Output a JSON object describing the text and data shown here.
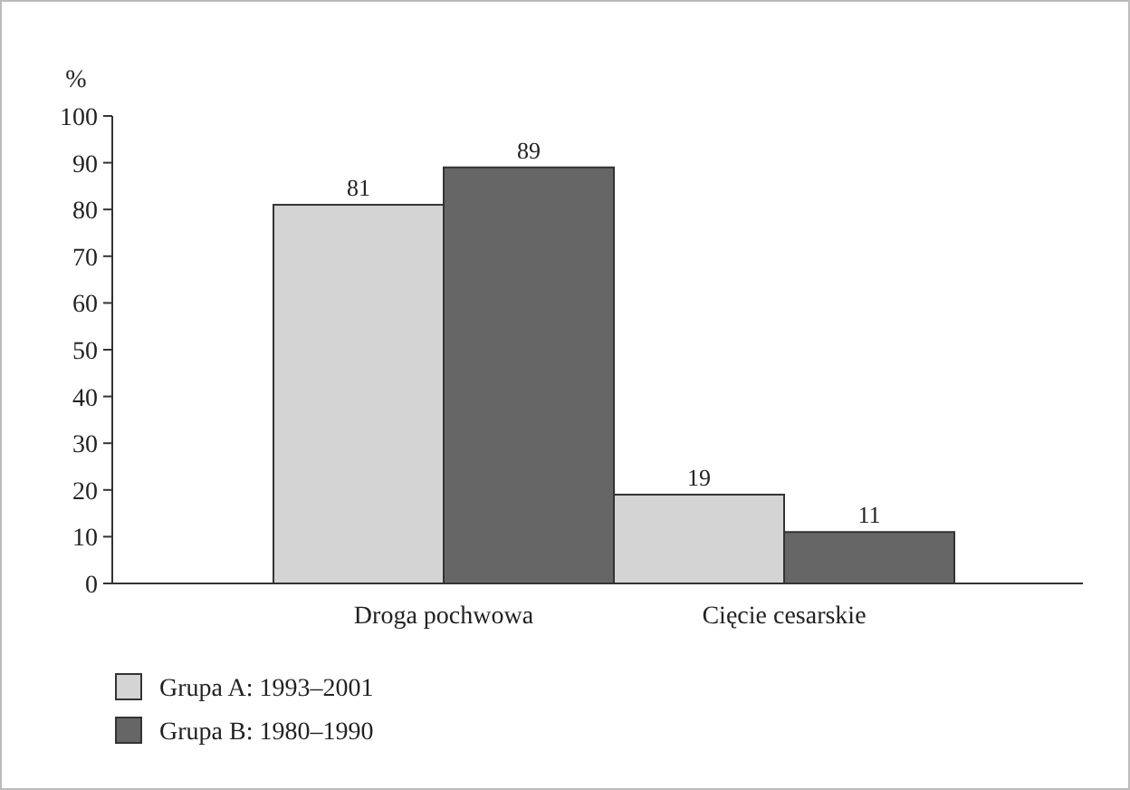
{
  "chart_data": {
    "type": "bar",
    "ylabel": "%",
    "categories": [
      "Droga pochwowa",
      "Cięcie cesarskie"
    ],
    "series": [
      {
        "name": "Grupa A: 1993–2001",
        "color": "#d4d4d4",
        "values": [
          81,
          19
        ]
      },
      {
        "name": "Grupa B: 1980–1990",
        "color": "#666666",
        "values": [
          89,
          11
        ]
      }
    ],
    "ylim": [
      0,
      100
    ],
    "yticks": [
      0,
      10,
      20,
      30,
      40,
      50,
      60,
      70,
      80,
      90,
      100
    ],
    "data_labels": true,
    "legend": "bottom left",
    "grid": false
  }
}
